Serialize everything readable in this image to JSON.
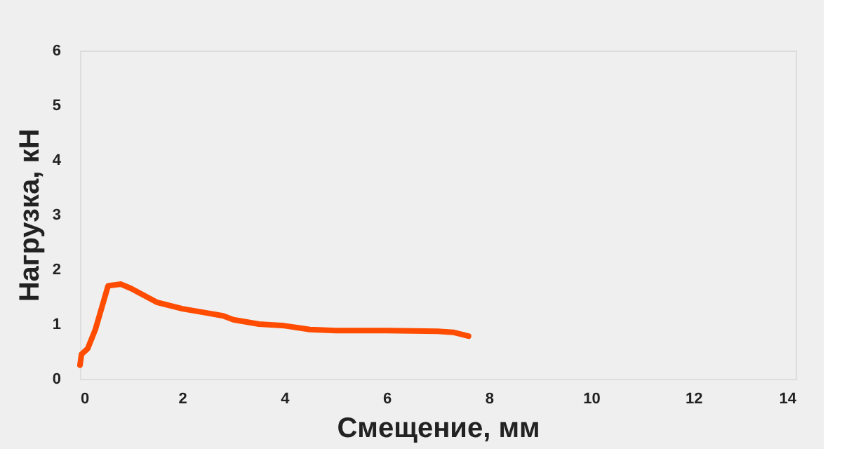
{
  "chart_data": {
    "type": "line",
    "xlabel": "Смещение, мм",
    "ylabel": "Нагрузка, кН",
    "xlim": [
      0,
      14
    ],
    "xticks": [
      0,
      2,
      4,
      6,
      8,
      10,
      12,
      14
    ],
    "ylim": [
      0,
      6
    ],
    "yticks": [
      0,
      1,
      2,
      3,
      4,
      5,
      6
    ],
    "grid": false,
    "legend": false,
    "marker": "none",
    "line_style": "solid",
    "series": [
      {
        "color": "#ff4c00",
        "x": [
          0.0,
          0.03,
          0.15,
          0.3,
          0.55,
          0.8,
          1.0,
          1.5,
          2.0,
          2.5,
          2.8,
          3.0,
          3.5,
          4.0,
          4.5,
          5.0,
          6.0,
          7.0,
          7.3,
          7.6
        ],
        "values": [
          0.25,
          0.45,
          0.55,
          0.9,
          1.7,
          1.73,
          1.65,
          1.4,
          1.28,
          1.2,
          1.15,
          1.08,
          1.0,
          0.97,
          0.9,
          0.88,
          0.88,
          0.87,
          0.85,
          0.78
        ]
      }
    ]
  }
}
